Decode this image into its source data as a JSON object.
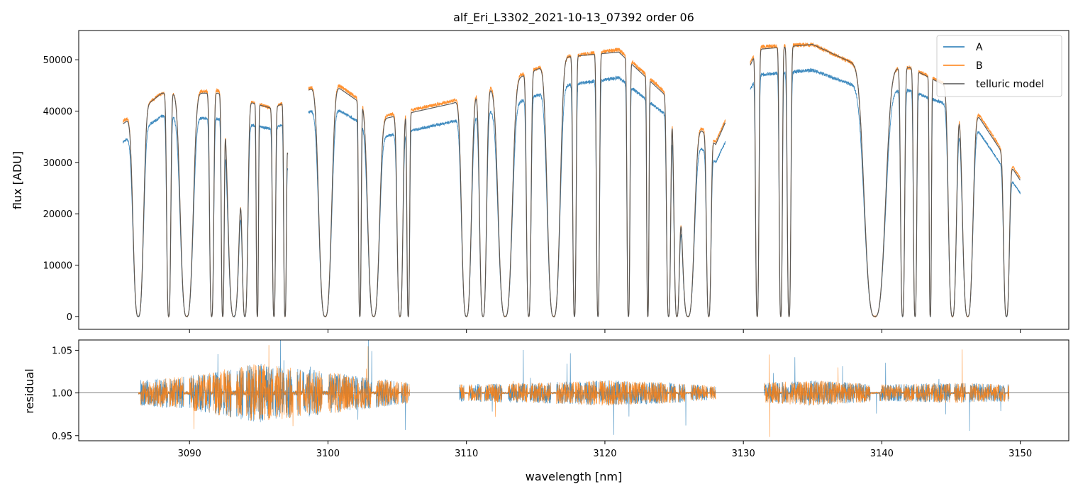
{
  "chart_data": {
    "type": "line",
    "title": "alf_Eri_L3302_2021-10-13_07392  order 06",
    "xlabel": "wavelength [nm]",
    "xlim": [
      3082.0,
      3153.5
    ],
    "x_ticks": [
      3090,
      3100,
      3110,
      3120,
      3130,
      3140,
      3150
    ],
    "x_tick_labels": [
      "3090",
      "3100",
      "3110",
      "3120",
      "3130",
      "3140",
      "3150"
    ],
    "panels": [
      {
        "name": "flux",
        "ylabel": "flux [ADU]",
        "ylim": [
          -2500,
          55700
        ],
        "y_ticks": [
          0,
          10000,
          20000,
          30000,
          40000,
          50000
        ],
        "y_tick_labels": [
          "0",
          "10000",
          "20000",
          "30000",
          "40000",
          "50000"
        ],
        "legend": {
          "placement": "top-right",
          "entries": [
            "A",
            "B",
            "telluric model"
          ]
        },
        "segments": [
          [
            3085.2,
            3097.1
          ],
          [
            3098.6,
            3128.7
          ],
          [
            3130.5,
            3150.0
          ]
        ],
        "series": [
          {
            "name": "A",
            "color": "#1f77b4",
            "continuum": [
              [
                3085.2,
                34000
              ],
              [
                3088,
                39000
              ],
              [
                3092,
                38500
              ],
              [
                3096,
                36500
              ],
              [
                3100,
                41500
              ],
              [
                3104,
                35000
              ],
              [
                3109,
                38000
              ],
              [
                3113,
                41000
              ],
              [
                3117,
                45000
              ],
              [
                3121,
                46500
              ],
              [
                3125,
                38000
              ],
              [
                3128,
                30000
              ],
              [
                3131,
                47000
              ],
              [
                3135,
                48000
              ],
              [
                3139,
                44000
              ],
              [
                3142,
                44000
              ],
              [
                3146,
                40000
              ],
              [
                3150,
                24000
              ]
            ]
          },
          {
            "name": "B",
            "color": "#ff7f0e",
            "continuum": [
              [
                3085.2,
                38000
              ],
              [
                3088,
                43500
              ],
              [
                3092,
                44000
              ],
              [
                3096,
                40500
              ],
              [
                3100,
                46500
              ],
              [
                3104,
                39000
              ],
              [
                3109,
                42000
              ],
              [
                3113,
                46000
              ],
              [
                3117,
                50500
              ],
              [
                3121,
                52000
              ],
              [
                3125,
                42000
              ],
              [
                3128,
                34000
              ],
              [
                3131,
                52500
              ],
              [
                3135,
                53000
              ],
              [
                3139,
                48000
              ],
              [
                3142,
                48500
              ],
              [
                3146,
                43500
              ],
              [
                3150,
                27000
              ]
            ]
          },
          {
            "name": "telluric model",
            "color": "#555555",
            "continuum": [
              [
                3085.2,
                37500
              ],
              [
                3088,
                43500
              ],
              [
                3092,
                43500
              ],
              [
                3096,
                40500
              ],
              [
                3100,
                46000
              ],
              [
                3104,
                38500
              ],
              [
                3109,
                41500
              ],
              [
                3113,
                45500
              ],
              [
                3117,
                50500
              ],
              [
                3121,
                51500
              ],
              [
                3125,
                41500
              ],
              [
                3128,
                33500
              ],
              [
                3131,
                52000
              ],
              [
                3135,
                53000
              ],
              [
                3139,
                48000
              ],
              [
                3142,
                48500
              ],
              [
                3146,
                43000
              ],
              [
                3150,
                26500
              ]
            ]
          }
        ],
        "absorption_bands": [
          [
            3086.3,
            0.45
          ],
          [
            3088.5,
            0.18
          ],
          [
            3089.8,
            0.55
          ],
          [
            3091.6,
            0.18
          ],
          [
            3092.4,
            0.13
          ],
          [
            3093.2,
            0.5
          ],
          [
            3094.0,
            0.26
          ],
          [
            3094.9,
            0.1
          ],
          [
            3096.1,
            0.14
          ],
          [
            3096.9,
            0.12
          ],
          [
            3097.6,
            0.45
          ],
          [
            3098.1,
            0.15
          ],
          [
            3099.8,
            0.55
          ],
          [
            3102.3,
            0.12
          ],
          [
            3103.3,
            0.5
          ],
          [
            3105.2,
            0.25
          ],
          [
            3105.8,
            0.12
          ],
          [
            3110.0,
            0.42
          ],
          [
            3111.2,
            0.3
          ],
          [
            3112.8,
            0.6
          ],
          [
            3114.5,
            0.2
          ],
          [
            3116.3,
            0.55
          ],
          [
            3117.8,
            0.15
          ],
          [
            3119.5,
            0.14
          ],
          [
            3121.7,
            0.13
          ],
          [
            3123.1,
            0.1
          ],
          [
            3124.6,
            0.18
          ],
          [
            3125.2,
            0.25
          ],
          [
            3126.0,
            0.55
          ],
          [
            3127.5,
            0.2
          ],
          [
            3131.0,
            0.15
          ],
          [
            3132.7,
            0.14
          ],
          [
            3133.3,
            0.16
          ],
          [
            3139.5,
            0.9
          ],
          [
            3141.5,
            0.18
          ],
          [
            3142.4,
            0.15
          ],
          [
            3143.5,
            0.1
          ],
          [
            3145.1,
            0.35
          ],
          [
            3146.2,
            0.45
          ],
          [
            3149.0,
            0.25
          ]
        ]
      },
      {
        "name": "residual",
        "ylabel": "residual",
        "ylim": [
          0.944,
          1.062
        ],
        "y_ticks": [
          0.95,
          1.0,
          1.05
        ],
        "y_tick_labels": [
          "0.95",
          "1.00",
          "1.05"
        ],
        "reference_line": 1.0,
        "segments": [
          [
            3086.3,
            3105.9
          ],
          [
            3109.5,
            3128.0
          ],
          [
            3131.5,
            3149.2
          ]
        ],
        "noise_level": [
          [
            3086.3,
            0.015
          ],
          [
            3090.0,
            0.02
          ],
          [
            3095.0,
            0.035
          ],
          [
            3100.0,
            0.025
          ],
          [
            3105.9,
            0.012
          ],
          [
            3109.5,
            0.01
          ],
          [
            3115.0,
            0.012
          ],
          [
            3120.0,
            0.015
          ],
          [
            3125.0,
            0.012
          ],
          [
            3128.0,
            0.008
          ],
          [
            3131.5,
            0.012
          ],
          [
            3135.0,
            0.015
          ],
          [
            3140.0,
            0.01
          ],
          [
            3145.0,
            0.012
          ],
          [
            3149.2,
            0.01
          ]
        ],
        "series": [
          {
            "name": "A",
            "color": "#1f77b4"
          },
          {
            "name": "B",
            "color": "#ff7f0e"
          }
        ]
      }
    ]
  }
}
